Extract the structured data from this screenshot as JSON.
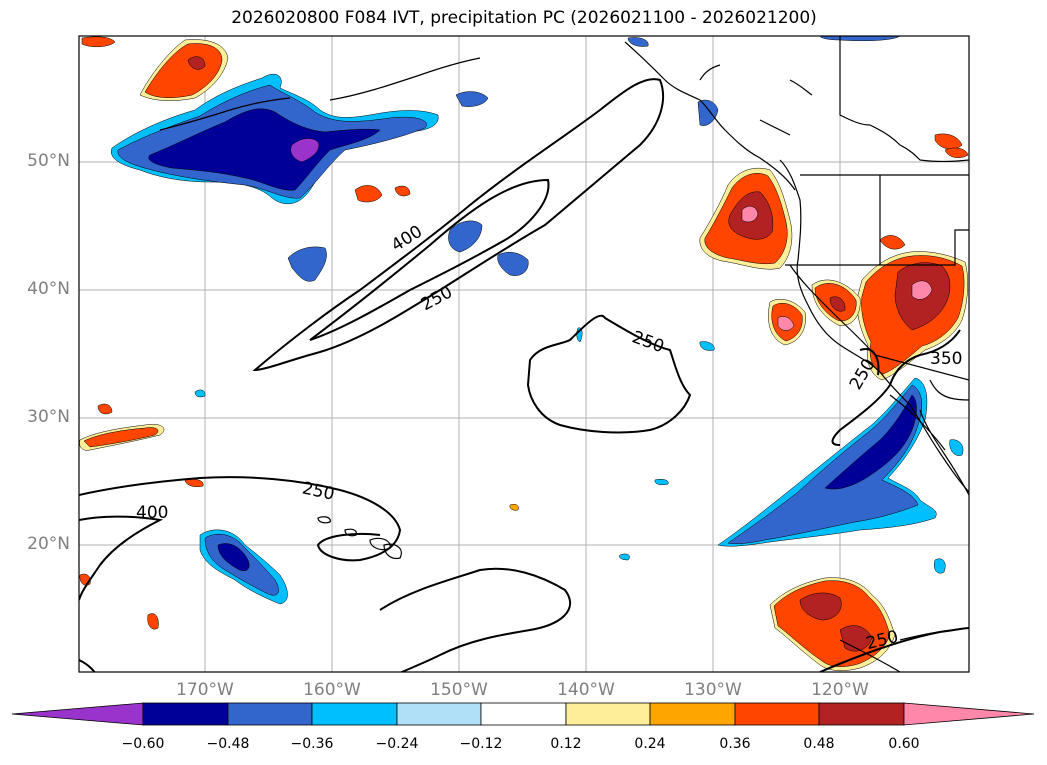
{
  "title": "2026020800 F084 IVT, precipitation PC (2026021100 - 2026021200)",
  "lat_labels": [
    "50°N",
    "40°N",
    "30°N",
    "20°N"
  ],
  "lon_labels": [
    "170°W",
    "160°W",
    "150°W",
    "140°W",
    "130°W",
    "120°W"
  ],
  "contour_labels": [
    "400",
    "250",
    "250",
    "250",
    "400",
    "250",
    "350",
    "250"
  ],
  "colorbar": {
    "ticks": [
      "−0.60",
      "−0.48",
      "−0.36",
      "−0.24",
      "−0.12",
      "0.12",
      "0.24",
      "0.36",
      "0.48",
      "0.60"
    ],
    "colors": [
      "#9933cc",
      "#000099",
      "#3366cc",
      "#00bfff",
      "#b0e0f8",
      "#ffffff",
      "#ffee99",
      "#ffa500",
      "#ff4500",
      "#b22222",
      "#ff88aa"
    ]
  },
  "colors": {
    "grid": "#b0b0b0",
    "coast": "#000000",
    "contour": "#000000"
  }
}
